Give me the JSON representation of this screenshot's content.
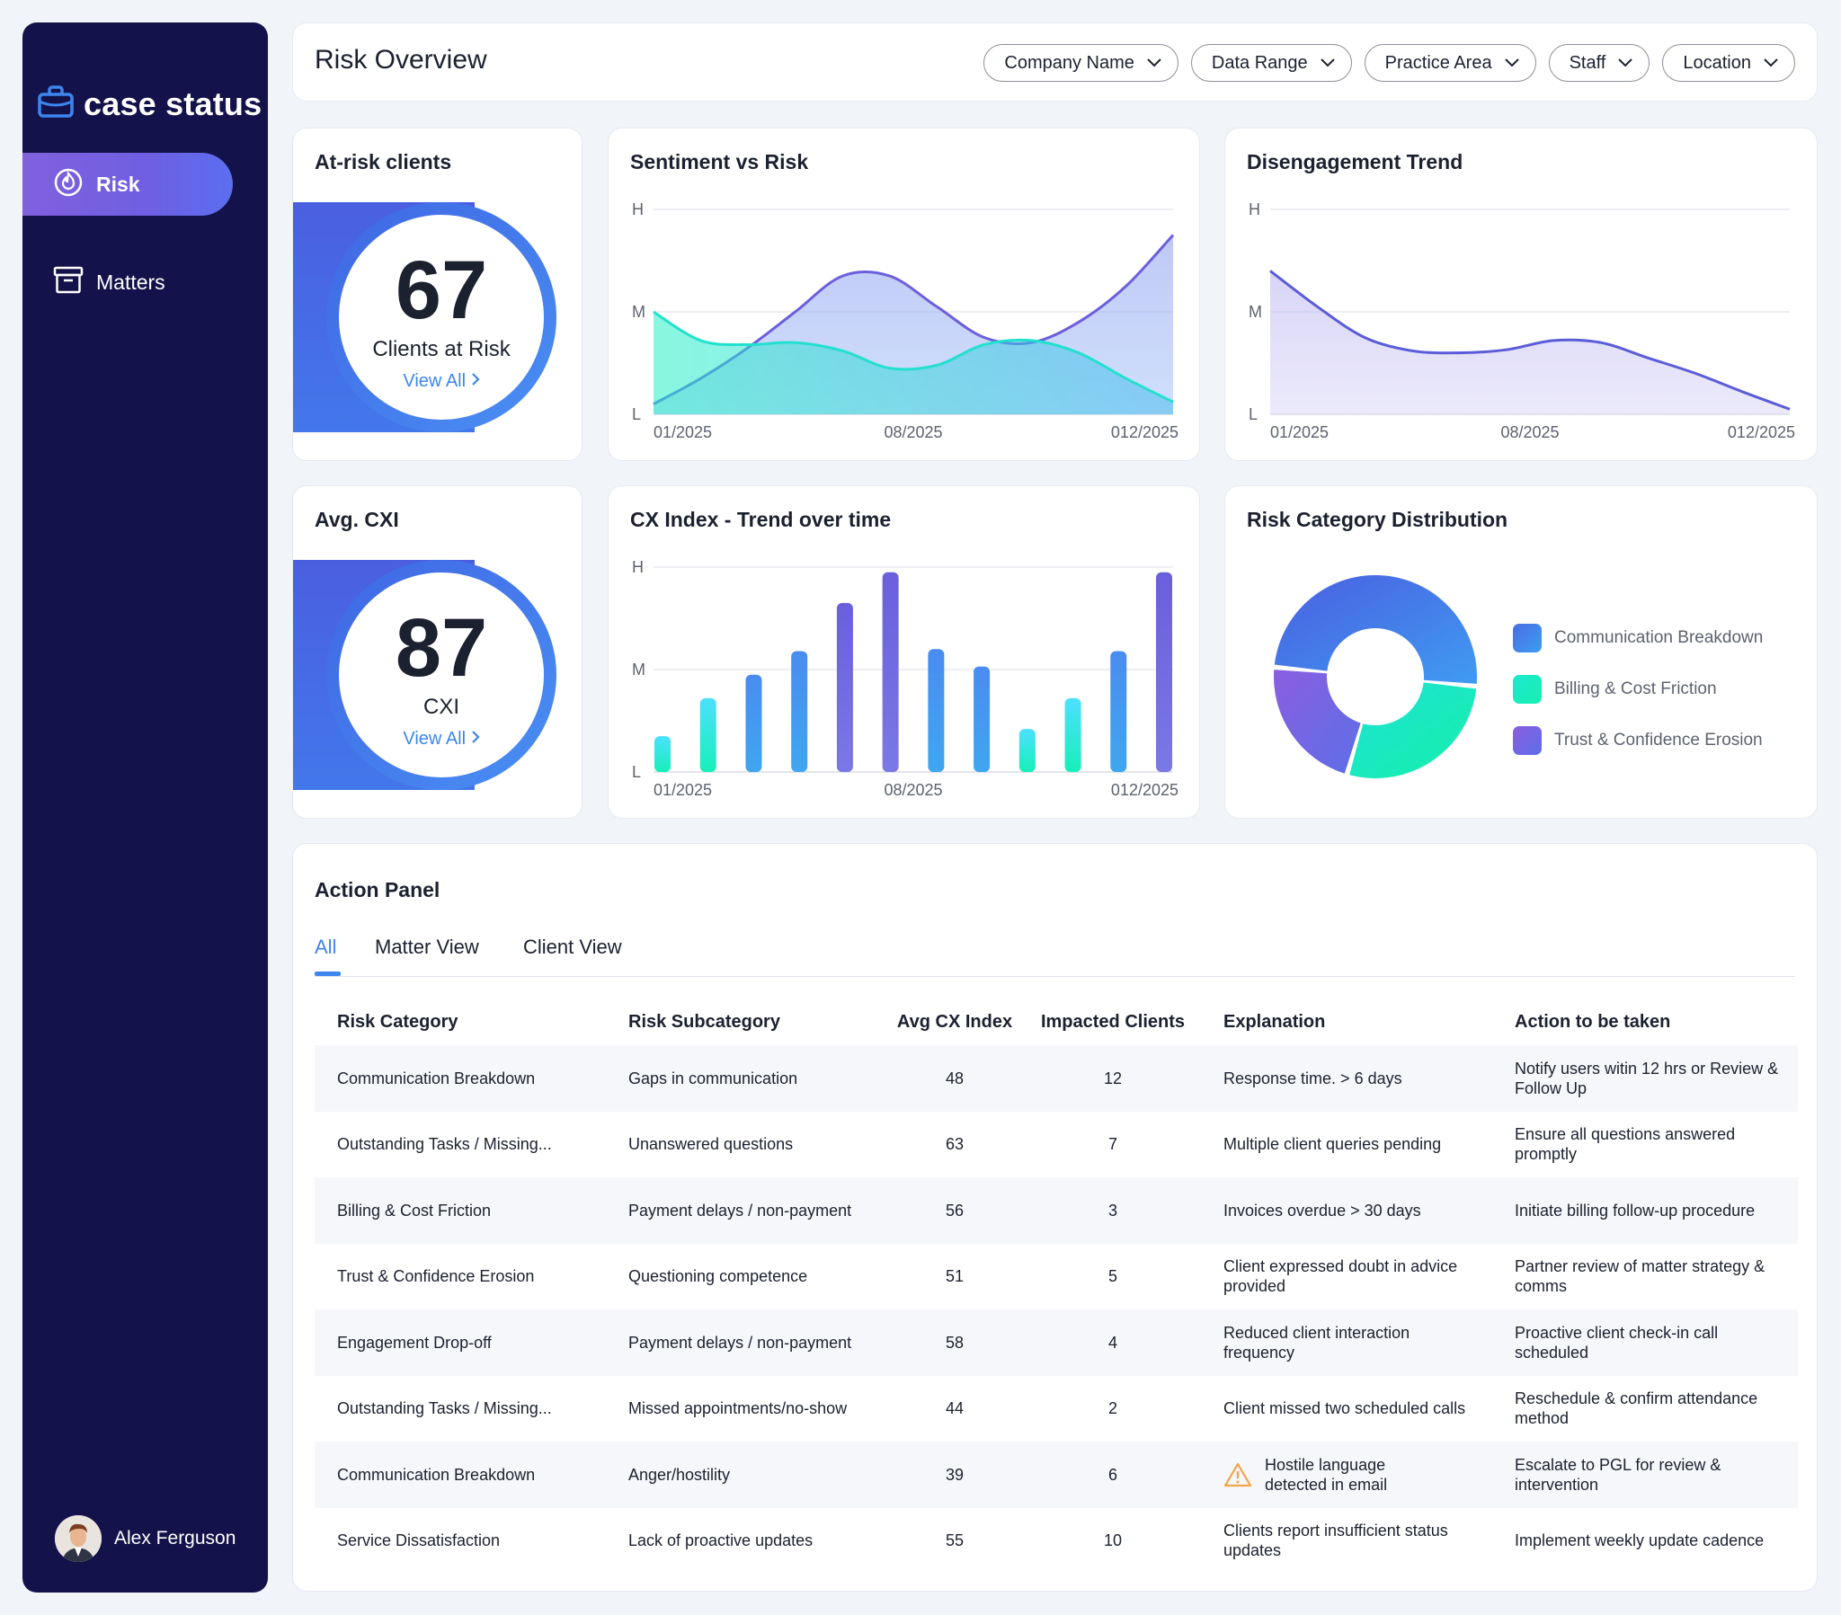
{
  "app": {
    "logo_text": "case status"
  },
  "sidebar": {
    "items": [
      {
        "label": "Risk",
        "icon": "flame-icon",
        "active": true
      },
      {
        "label": "Matters",
        "icon": "archive-icon",
        "active": false
      }
    ],
    "user": {
      "name": "Alex Ferguson"
    }
  },
  "header": {
    "title": "Risk Overview",
    "filters": [
      "Company Name",
      "Data Range",
      "Practice Area",
      "Staff",
      "Location"
    ]
  },
  "kpis": {
    "at_risk": {
      "title": "At-risk clients",
      "value": "67",
      "label": "Clients at Risk",
      "link": "View All"
    },
    "avg_cxi": {
      "title": "Avg. CXI",
      "value": "87",
      "label": "CXI",
      "link": "View All"
    }
  },
  "colors": {
    "accent": "#3d86ee",
    "teal": "#16f0c0",
    "purple": "#7b60df",
    "blue": "#3f67e3",
    "sidebar": "#13124a"
  },
  "chart_data": [
    {
      "type": "area",
      "title": "Sentiment vs Risk",
      "y_ticks": [
        "H",
        "M",
        "L"
      ],
      "x_ticks": [
        "01/2025",
        "08/2025",
        "012/2025"
      ],
      "ylim": [
        0,
        2
      ],
      "x": [
        0,
        1,
        2,
        3,
        4,
        5,
        6,
        7,
        8,
        9,
        10,
        11
      ],
      "series": [
        {
          "values": [
            0.1,
            0.35,
            0.65,
            1.0,
            1.35,
            1.35,
            1.05,
            0.75,
            0.7,
            0.9,
            1.25,
            1.75
          ]
        },
        {
          "values": [
            1.0,
            0.72,
            0.68,
            0.7,
            0.62,
            0.45,
            0.48,
            0.68,
            0.72,
            0.6,
            0.35,
            0.12
          ]
        }
      ]
    },
    {
      "type": "area",
      "title": "Disengagement Trend",
      "y_ticks": [
        "H",
        "M",
        "L"
      ],
      "x_ticks": [
        "01/2025",
        "08/2025",
        "012/2025"
      ],
      "ylim": [
        0,
        2
      ],
      "x": [
        0,
        1,
        2,
        3,
        4,
        5,
        6,
        7,
        8,
        9,
        10,
        11
      ],
      "series": [
        {
          "values": [
            1.4,
            1.05,
            0.75,
            0.62,
            0.6,
            0.63,
            0.72,
            0.7,
            0.55,
            0.4,
            0.22,
            0.05
          ]
        }
      ]
    },
    {
      "type": "bar",
      "title": "CX Index - Trend over time",
      "y_ticks": [
        "H",
        "M",
        "L"
      ],
      "x_ticks": [
        "01/2025",
        "08/2025",
        "012/2025"
      ],
      "ylim": [
        0,
        2
      ],
      "values": [
        0.35,
        0.72,
        0.95,
        1.18,
        1.65,
        1.95,
        1.2,
        1.03,
        0.42,
        0.72,
        1.18,
        1.95
      ]
    },
    {
      "type": "pie",
      "title": "Risk Category Distribution",
      "labels": [
        "Communication Breakdown",
        "Billing & Cost Friction",
        "Trust & Confidence Erosion"
      ],
      "values": [
        50,
        28,
        22
      ],
      "colors": [
        "#3d74e6",
        "#16f0c0",
        "#7b60df"
      ]
    }
  ],
  "action_panel": {
    "title": "Action Panel",
    "tabs": [
      "All",
      "Matter View",
      "Client View"
    ],
    "columns": [
      "Risk Category",
      "Risk Subcategory",
      "Avg CX Index",
      "Impacted Clients",
      "Explanation",
      "Action to be taken"
    ],
    "rows": [
      [
        "Communication Breakdown",
        "Gaps in communication",
        "48",
        "12",
        "Response time. > 6 days",
        "Notify users witin 12 hrs or Review & Follow Up"
      ],
      [
        "Outstanding Tasks / Missing...",
        "Unanswered questions",
        "63",
        "7",
        "Multiple client queries pending",
        "Ensure all questions answered promptly"
      ],
      [
        "Billing & Cost Friction",
        "Payment delays / non-payment",
        "56",
        "3",
        "Invoices overdue > 30 days",
        "Initiate billing follow-up procedure"
      ],
      [
        "Trust & Confidence Erosion",
        "Questioning competence",
        "51",
        "5",
        "Client expressed doubt in advice provided",
        "Partner review of matter strategy & comms"
      ],
      [
        "Engagement Drop-off",
        "Payment delays / non-payment",
        "58",
        "4",
        "Reduced client interaction frequency",
        "Proactive client check-in call scheduled"
      ],
      [
        "Outstanding Tasks / Missing...",
        "Missed appointments/no-show",
        "44",
        "2",
        "Client missed two scheduled calls",
        "Reschedule & confirm attendance method"
      ],
      [
        "Communication Breakdown",
        "Anger/hostility",
        "39",
        "6",
        "Hostile language detected in email",
        "Escalate to PGL for review & intervention"
      ],
      [
        "Service Dissatisfaction",
        "Lack of proactive updates",
        "55",
        "10",
        "Clients report insufficient status updates",
        "Implement weekly update cadence"
      ]
    ],
    "warning_row_index": 6
  }
}
